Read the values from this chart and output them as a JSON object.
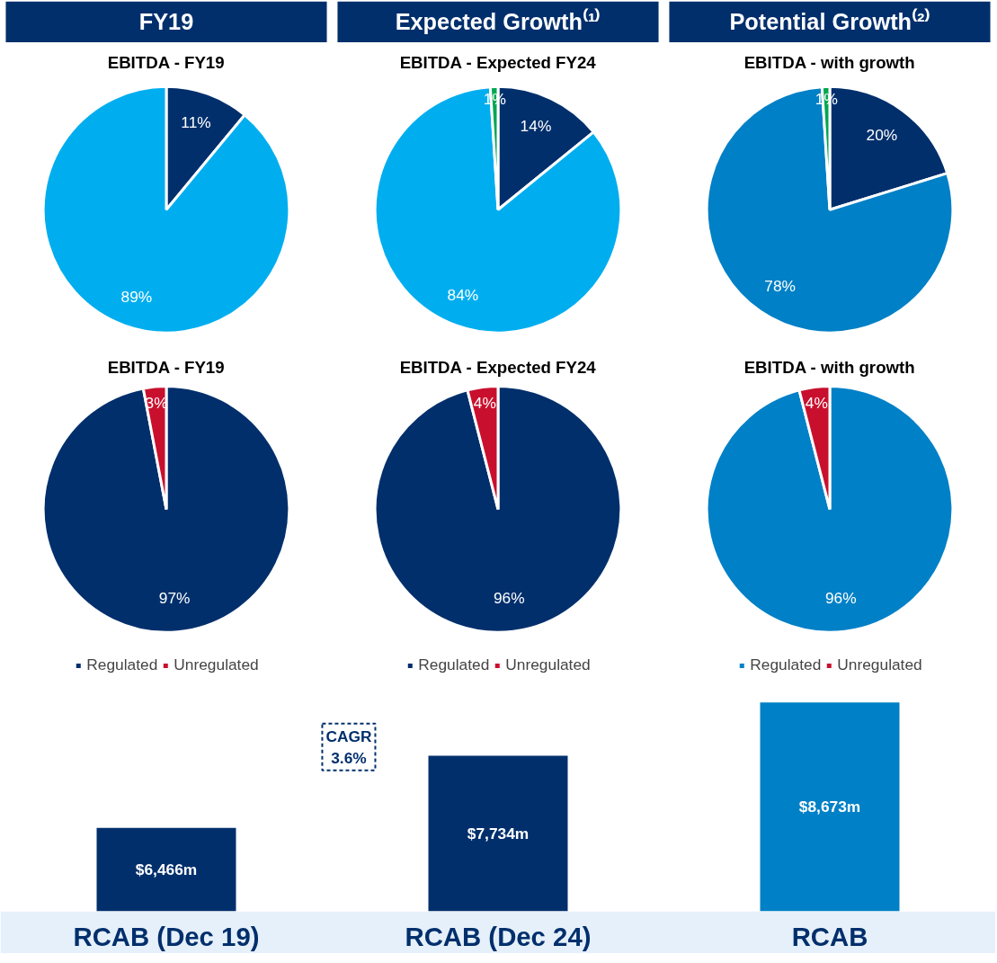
{
  "chart_data": [
    {
      "type": "pie",
      "title": "EBITDA - FY19",
      "annotations": [
        "FY19"
      ],
      "categories": [
        null,
        null
      ],
      "values": [
        11,
        89
      ],
      "colors": [
        "#002f6c",
        "#00aeef"
      ],
      "value_labels": [
        "11%",
        "89%"
      ]
    },
    {
      "type": "pie",
      "title": "EBITDA - Expected FY24",
      "annotations": [
        "Expected Growth⁽¹⁾"
      ],
      "categories": [
        null,
        null,
        null
      ],
      "values": [
        14,
        84,
        1
      ],
      "colors": [
        "#002f6c",
        "#00aeef",
        "#00a651"
      ],
      "value_labels": [
        "14%",
        "84%",
        "1%"
      ]
    },
    {
      "type": "pie",
      "title": "EBITDA - with growth",
      "annotations": [
        "Potential Growth⁽²⁾"
      ],
      "categories": [
        null,
        null,
        null
      ],
      "values": [
        20,
        78,
        1
      ],
      "colors": [
        "#002f6c",
        "#0080c6",
        "#00a651"
      ],
      "value_labels": [
        "20%",
        "78%",
        "1%"
      ]
    },
    {
      "type": "pie",
      "title": "EBITDA - FY19",
      "categories": [
        "Regulated",
        "Unregulated"
      ],
      "values": [
        97,
        3
      ],
      "colors": [
        "#002f6c",
        "#c8102e"
      ],
      "value_labels": [
        "97%",
        "3%"
      ],
      "legend": "bottom"
    },
    {
      "type": "pie",
      "title": "EBITDA - Expected FY24",
      "categories": [
        "Regulated",
        "Unregulated"
      ],
      "values": [
        96,
        4
      ],
      "colors": [
        "#002f6c",
        "#c8102e"
      ],
      "value_labels": [
        "96%",
        "4%"
      ],
      "legend": "bottom"
    },
    {
      "type": "pie",
      "title": "EBITDA - with growth",
      "categories": [
        "Regulated",
        "Unregulated"
      ],
      "values": [
        96,
        4
      ],
      "colors": [
        "#0080c6",
        "#c8102e"
      ],
      "value_labels": [
        "96%",
        "4%"
      ],
      "legend": "bottom"
    },
    {
      "type": "bar",
      "categories": [
        "RCAB (Dec 19)",
        "RCAB (Dec 24)",
        "RCAB"
      ],
      "values": [
        6466,
        7734,
        8673
      ],
      "colors": [
        "#002f6c",
        "#002f6c",
        "#0080c6"
      ],
      "value_labels": [
        "$6,466m",
        "$7,734m",
        "$8,673m"
      ],
      "ylim": [
        5000,
        9000
      ],
      "tick_labels": "x",
      "annotations": [
        "CAGR\n3.6%"
      ]
    }
  ]
}
